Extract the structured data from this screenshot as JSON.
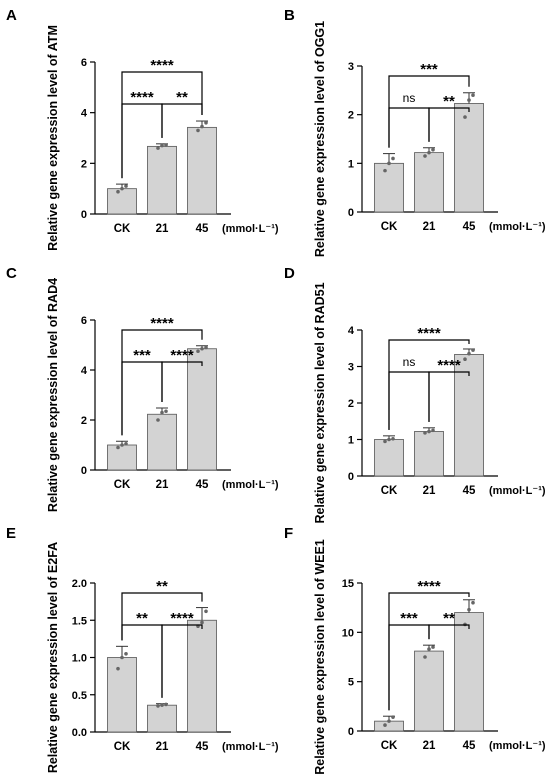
{
  "colors": {
    "bar_fill": "#d3d3d3",
    "bar_stroke": "#555555",
    "axis": "#000000",
    "point": "#666666"
  },
  "chart_data": [
    {
      "panel": "A",
      "type": "bar",
      "categories": [
        "CK",
        "21",
        "45"
      ],
      "unit_label": "(mmol·L⁻¹)",
      "values": [
        1.0,
        2.67,
        3.42
      ],
      "errors": [
        0.18,
        0.1,
        0.25
      ],
      "points": [
        [
          0.88,
          1.0,
          1.1
        ],
        [
          2.6,
          2.7,
          2.72
        ],
        [
          3.3,
          3.45,
          3.6
        ]
      ],
      "ylabel": "Relative gene expression level of ATM",
      "ylim": [
        0,
        6
      ],
      "yticks": [
        0,
        2,
        4,
        6
      ],
      "yticklabels": [
        "0",
        "2",
        "4",
        "6"
      ],
      "comparisons": [
        {
          "from": 0,
          "to": 1,
          "label": "****",
          "level": 1
        },
        {
          "from": 1,
          "to": 2,
          "label": "**",
          "level": 1
        },
        {
          "from": 0,
          "to": 2,
          "label": "****",
          "level": 2
        }
      ]
    },
    {
      "panel": "B",
      "type": "bar",
      "categories": [
        "CK",
        "21",
        "45"
      ],
      "unit_label": "(mmol·L⁻¹)",
      "values": [
        1.0,
        1.22,
        2.23
      ],
      "errors": [
        0.2,
        0.1,
        0.22
      ],
      "points": [
        [
          0.85,
          1.0,
          1.1
        ],
        [
          1.15,
          1.22,
          1.28
        ],
        [
          1.95,
          2.3,
          2.4
        ]
      ],
      "ylabel": "Relative gene expression level of OGG1",
      "ylim": [
        0,
        3
      ],
      "yticks": [
        0,
        1,
        2,
        3
      ],
      "yticklabels": [
        "0",
        "1",
        "2",
        "3"
      ],
      "comparisons": [
        {
          "from": 0,
          "to": 1,
          "label": "ns",
          "level": 1
        },
        {
          "from": 1,
          "to": 2,
          "label": "**",
          "level": 1
        },
        {
          "from": 0,
          "to": 2,
          "label": "***",
          "level": 2
        }
      ]
    },
    {
      "panel": "C",
      "type": "bar",
      "categories": [
        "CK",
        "21",
        "45"
      ],
      "unit_label": "(mmol·L⁻¹)",
      "values": [
        1.0,
        2.23,
        4.85
      ],
      "errors": [
        0.15,
        0.25,
        0.12
      ],
      "points": [
        [
          0.9,
          1.0,
          1.05
        ],
        [
          2.0,
          2.3,
          2.35
        ],
        [
          4.75,
          4.85,
          4.9
        ]
      ],
      "ylabel": "Relative gene expression level of RAD4",
      "ylim": [
        0,
        6
      ],
      "yticks": [
        0,
        2,
        4,
        6
      ],
      "yticklabels": [
        "0",
        "2",
        "4",
        "6"
      ],
      "comparisons": [
        {
          "from": 0,
          "to": 1,
          "label": "***",
          "level": 1
        },
        {
          "from": 1,
          "to": 2,
          "label": "****",
          "level": 1
        },
        {
          "from": 0,
          "to": 2,
          "label": "****",
          "level": 2
        }
      ]
    },
    {
      "panel": "D",
      "type": "bar",
      "categories": [
        "CK",
        "21",
        "45"
      ],
      "unit_label": "(mmol·L⁻¹)",
      "values": [
        1.0,
        1.22,
        3.33
      ],
      "errors": [
        0.1,
        0.1,
        0.15
      ],
      "points": [
        [
          0.95,
          1.0,
          1.02
        ],
        [
          1.18,
          1.22,
          1.25
        ],
        [
          3.2,
          3.35,
          3.45
        ]
      ],
      "ylabel": "Relative gene expression level of RAD51",
      "ylim": [
        0,
        4
      ],
      "yticks": [
        0,
        1,
        2,
        3,
        4
      ],
      "yticklabels": [
        "0",
        "1",
        "2",
        "3",
        "4"
      ],
      "comparisons": [
        {
          "from": 0,
          "to": 1,
          "label": "ns",
          "level": 1
        },
        {
          "from": 1,
          "to": 2,
          "label": "****",
          "level": 1
        },
        {
          "from": 0,
          "to": 2,
          "label": "****",
          "level": 2
        }
      ]
    },
    {
      "panel": "E",
      "type": "bar",
      "categories": [
        "CK",
        "21",
        "45"
      ],
      "unit_label": "(mmol·L⁻¹)",
      "values": [
        1.0,
        0.36,
        1.5
      ],
      "errors": [
        0.15,
        0.02,
        0.17
      ],
      "points": [
        [
          0.85,
          1.0,
          1.05
        ],
        [
          0.35,
          0.36,
          0.37
        ],
        [
          1.42,
          1.47,
          1.62
        ]
      ],
      "ylabel": "Relative gene expression level of E2FA",
      "ylim": [
        0,
        2.0
      ],
      "yticks": [
        0,
        0.5,
        1.0,
        1.5,
        2.0
      ],
      "yticklabels": [
        "0.0",
        "0.5",
        "1.0",
        "1.5",
        "2.0"
      ],
      "comparisons": [
        {
          "from": 0,
          "to": 1,
          "label": "**",
          "level": 1
        },
        {
          "from": 1,
          "to": 2,
          "label": "****",
          "level": 1
        },
        {
          "from": 0,
          "to": 2,
          "label": "**",
          "level": 2
        }
      ]
    },
    {
      "panel": "F",
      "type": "bar",
      "categories": [
        "CK",
        "21",
        "45"
      ],
      "unit_label": "(mmol·L⁻¹)",
      "values": [
        1.0,
        8.1,
        12.0
      ],
      "errors": [
        0.5,
        0.6,
        1.3
      ],
      "points": [
        [
          0.6,
          1.0,
          1.4
        ],
        [
          7.5,
          8.3,
          8.5
        ],
        [
          10.8,
          12.3,
          13.0
        ]
      ],
      "ylabel": "Relative gene expression level of WEE1",
      "ylim": [
        0,
        15
      ],
      "yticks": [
        0,
        5,
        10,
        15
      ],
      "yticklabels": [
        "0",
        "5",
        "10",
        "15"
      ],
      "comparisons": [
        {
          "from": 0,
          "to": 1,
          "label": "***",
          "level": 1
        },
        {
          "from": 1,
          "to": 2,
          "label": "**",
          "level": 1
        },
        {
          "from": 0,
          "to": 2,
          "label": "****",
          "level": 2
        }
      ]
    }
  ]
}
